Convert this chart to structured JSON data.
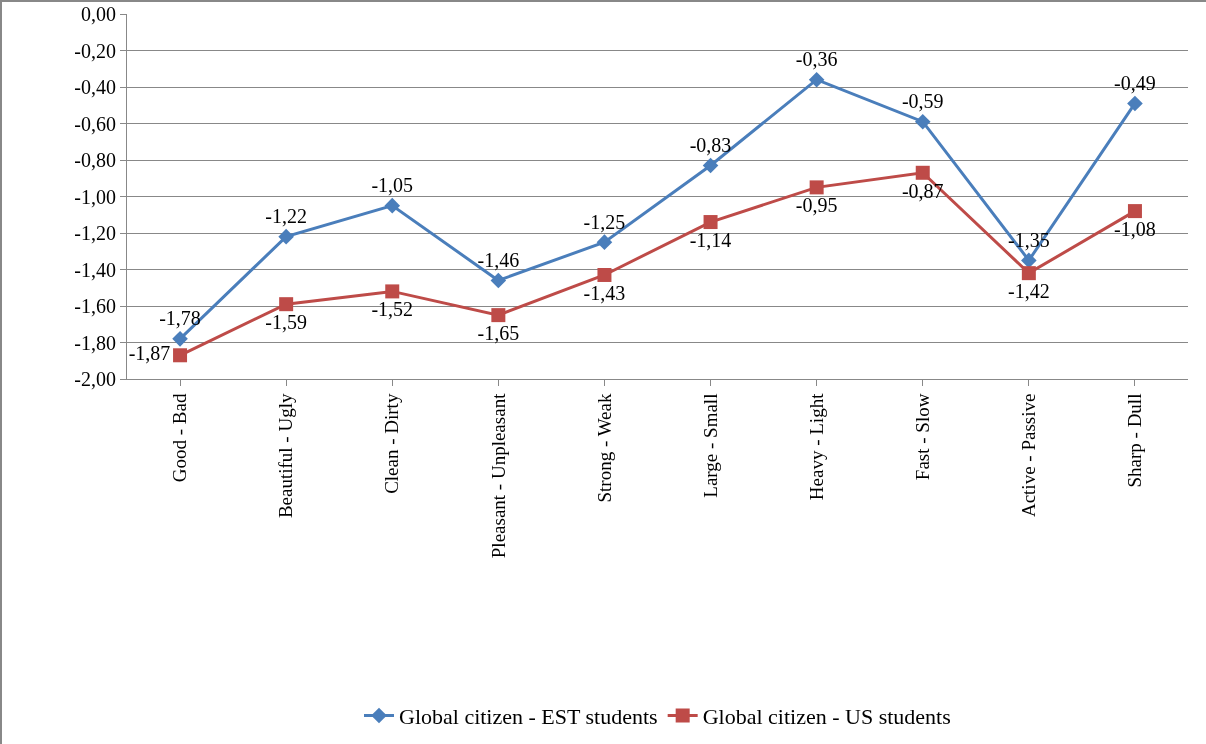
{
  "chart_data": {
    "type": "line",
    "categories": [
      "Good - Bad",
      "Beautiful - Ugly",
      "Clean - Dirty",
      "Pleasant - Unpleasant",
      "Strong - Weak",
      "Large - Small",
      "Heavy - Light",
      "Fast - Slow",
      "Active - Passive",
      "Sharp - Dull"
    ],
    "series": [
      {
        "name": "Global citizen - EST students",
        "color": "#4a7ebb",
        "marker": "diamond",
        "values": [
          -1.78,
          -1.22,
          -1.05,
          -1.46,
          -1.25,
          -0.83,
          -0.36,
          -0.59,
          -1.35,
          -0.49
        ],
        "value_labels": [
          "-1,78",
          "-1,22",
          "-1,05",
          "-1,46",
          "-1,25",
          "-0,83",
          "-0,36",
          "-0,59",
          "-1,35",
          "-0,49"
        ]
      },
      {
        "name": "Global citizen - US students",
        "color": "#be4b48",
        "marker": "square",
        "values": [
          -1.87,
          -1.59,
          -1.52,
          -1.65,
          -1.43,
          -1.14,
          -0.95,
          -0.87,
          -1.42,
          -1.08
        ],
        "value_labels": [
          "-1,87",
          "-1,59",
          "-1,52",
          "-1,65",
          "-1,43",
          "-1,14",
          "-0,95",
          "-0,87",
          "-1,42",
          "-1,08"
        ]
      }
    ],
    "ylim": [
      -2,
      0
    ],
    "yticks": [
      {
        "value": 0,
        "label": "0,00"
      },
      {
        "value": -0.2,
        "label": "-0,20"
      },
      {
        "value": -0.4,
        "label": "-0,40"
      },
      {
        "value": -0.6,
        "label": "-0,60"
      },
      {
        "value": -0.8,
        "label": "-0,80"
      },
      {
        "value": -1,
        "label": "-1,00"
      },
      {
        "value": -1.2,
        "label": "-1,20"
      },
      {
        "value": -1.4,
        "label": "-1,40"
      },
      {
        "value": -1.6,
        "label": "-1,60"
      },
      {
        "value": -1.8,
        "label": "-1,80"
      },
      {
        "value": -2,
        "label": "-2,00"
      }
    ],
    "grid": "y",
    "legend": "bottom",
    "line_style": "solid"
  }
}
